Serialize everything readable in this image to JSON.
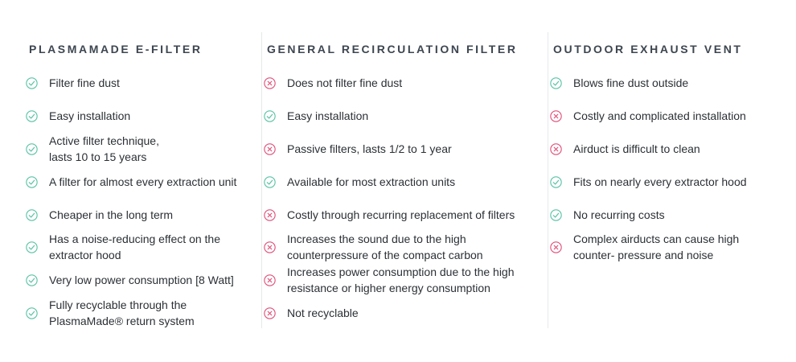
{
  "colors": {
    "check": "#5cc3a6",
    "cross": "#e0527a",
    "heading": "#3d4650",
    "text": "#2b3035"
  },
  "columns": [
    {
      "title": "PLASMAMADE E-FILTER",
      "items": [
        {
          "icon": "check-icon",
          "lines": [
            "Filter fine dust"
          ]
        },
        {
          "icon": "check-icon",
          "lines": [
            "Easy installation"
          ]
        },
        {
          "icon": "check-icon",
          "lines": [
            "Active filter technique,",
            "lasts 10 to 15 years"
          ]
        },
        {
          "icon": "check-icon",
          "lines": [
            "A filter for almost every extraction unit"
          ]
        },
        {
          "icon": "check-icon",
          "lines": [
            "Cheaper in the long term"
          ]
        },
        {
          "icon": "check-icon",
          "lines": [
            "Has a noise-reducing effect on the",
            "extractor hood"
          ]
        },
        {
          "icon": "check-icon",
          "lines": [
            "Very low power consumption [8 Watt]"
          ]
        },
        {
          "icon": "check-icon",
          "lines": [
            "Fully recyclable through the",
            "PlasmaMade® return system"
          ]
        }
      ]
    },
    {
      "title": "GENERAL RECIRCULATION FILTER",
      "items": [
        {
          "icon": "cross-icon",
          "lines": [
            "Does not filter fine dust"
          ]
        },
        {
          "icon": "check-icon",
          "lines": [
            "Easy installation"
          ]
        },
        {
          "icon": "cross-icon",
          "lines": [
            "Passive filters, lasts 1/2 to 1 year"
          ]
        },
        {
          "icon": "check-icon",
          "lines": [
            "Available for most extraction units"
          ]
        },
        {
          "icon": "cross-icon",
          "lines": [
            "Costly through recurring replacement of filters"
          ]
        },
        {
          "icon": "cross-icon",
          "lines": [
            "Increases the sound due to the high",
            "counterpressure of the compact carbon"
          ]
        },
        {
          "icon": "cross-icon",
          "lines": [
            "Increases power consumption due to the high",
            "resistance or higher energy consumption"
          ]
        },
        {
          "icon": "cross-icon",
          "lines": [
            "Not recyclable"
          ]
        }
      ]
    },
    {
      "title": "OUTDOOR EXHAUST VENT",
      "items": [
        {
          "icon": "check-icon",
          "lines": [
            "Blows fine dust outside"
          ]
        },
        {
          "icon": "cross-icon",
          "lines": [
            "Costly and complicated installation"
          ]
        },
        {
          "icon": "cross-icon",
          "lines": [
            "Airduct is difficult to clean"
          ]
        },
        {
          "icon": "check-icon",
          "lines": [
            "Fits on nearly every extractor hood"
          ]
        },
        {
          "icon": "check-icon",
          "lines": [
            "No recurring costs"
          ]
        },
        {
          "icon": "cross-icon",
          "lines": [
            "Complex airducts can cause high",
            "counter- pressure and noise"
          ]
        }
      ]
    }
  ]
}
